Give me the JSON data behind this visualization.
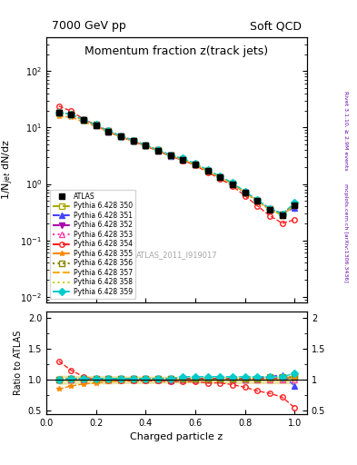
{
  "title_left": "7000 GeV pp",
  "title_right": "Soft QCD",
  "plot_title": "Momentum fraction z(track jets)",
  "ylabel_main": "1/N$_{jet}$ dN/dz",
  "ylabel_ratio": "Ratio to ATLAS",
  "xlabel": "Charged particle z",
  "watermark": "ATLAS_2011_I919017",
  "right_label_top": "Rivet 3.1.10, ≥ 2.9M events",
  "right_label_bottom": "mcplots.cern.ch [arXiv:1306.3436]",
  "ylim_main": [
    0.008,
    400
  ],
  "ylim_ratio": [
    0.45,
    2.1
  ],
  "xlim": [
    0.0,
    1.05
  ],
  "x_data": [
    0.05,
    0.1,
    0.15,
    0.2,
    0.25,
    0.3,
    0.35,
    0.4,
    0.45,
    0.5,
    0.55,
    0.6,
    0.65,
    0.7,
    0.75,
    0.8,
    0.85,
    0.9,
    0.95,
    1.0
  ],
  "atlas_y": [
    18.5,
    17.0,
    13.5,
    11.0,
    8.5,
    7.0,
    5.8,
    4.8,
    3.9,
    3.2,
    2.7,
    2.2,
    1.7,
    1.3,
    1.0,
    0.7,
    0.5,
    0.35,
    0.28,
    0.42
  ],
  "atlas_yerr": [
    0.5,
    0.4,
    0.3,
    0.25,
    0.2,
    0.15,
    0.12,
    0.1,
    0.08,
    0.06,
    0.05,
    0.04,
    0.035,
    0.025,
    0.02,
    0.015,
    0.01,
    0.008,
    0.006,
    0.01
  ],
  "series": [
    {
      "label": "Pythia 6.428 350",
      "color": "#aaaa00",
      "marker": "s",
      "linestyle": "--",
      "fillstyle": "none",
      "scale": [
        1.0,
        1.0,
        1.0,
        1.0,
        1.0,
        1.0,
        1.0,
        1.0,
        1.0,
        1.0,
        1.0,
        1.0,
        1.0,
        1.0,
        1.0,
        1.0,
        1.0,
        1.0,
        1.0,
        1.05
      ]
    },
    {
      "label": "Pythia 6.428 351",
      "color": "#4444ff",
      "marker": "^",
      "linestyle": "--",
      "fillstyle": "full",
      "scale": [
        1.0,
        1.0,
        1.0,
        1.0,
        1.0,
        1.0,
        1.0,
        1.0,
        1.0,
        0.98,
        1.0,
        1.0,
        1.0,
        1.0,
        1.0,
        1.0,
        1.02,
        1.05,
        1.08,
        0.9
      ]
    },
    {
      "label": "Pythia 6.428 352",
      "color": "#aa00aa",
      "marker": "v",
      "linestyle": "--",
      "fillstyle": "full",
      "scale": [
        1.0,
        1.02,
        1.02,
        1.02,
        1.02,
        1.02,
        1.02,
        1.02,
        1.02,
        1.02,
        1.02,
        1.02,
        1.02,
        1.02,
        1.02,
        1.02,
        1.02,
        1.02,
        1.02,
        1.05
      ]
    },
    {
      "label": "Pythia 6.428 353",
      "color": "#ff44aa",
      "marker": "^",
      "linestyle": ":",
      "fillstyle": "none",
      "scale": [
        1.0,
        1.0,
        1.0,
        1.0,
        1.0,
        1.0,
        1.0,
        1.0,
        1.0,
        1.0,
        1.0,
        1.0,
        1.0,
        1.0,
        1.0,
        1.0,
        1.0,
        1.0,
        1.0,
        1.0
      ]
    },
    {
      "label": "Pythia 6.428 354",
      "color": "#ff2222",
      "marker": "o",
      "linestyle": "--",
      "fillstyle": "none",
      "scale": [
        1.3,
        1.15,
        1.05,
        1.0,
        0.98,
        0.98,
        0.98,
        0.98,
        0.98,
        0.97,
        0.97,
        0.97,
        0.95,
        0.95,
        0.92,
        0.88,
        0.82,
        0.78,
        0.72,
        0.55
      ]
    },
    {
      "label": "Pythia 6.428 355",
      "color": "#ff8800",
      "marker": "*",
      "linestyle": "--",
      "fillstyle": "full",
      "scale": [
        0.85,
        0.9,
        0.93,
        0.95,
        0.97,
        0.98,
        1.0,
        1.0,
        1.0,
        1.0,
        1.0,
        1.0,
        1.0,
        1.0,
        1.0,
        1.0,
        1.0,
        1.0,
        1.02,
        1.05
      ]
    },
    {
      "label": "Pythia 6.428 356",
      "color": "#888800",
      "marker": "s",
      "linestyle": ":",
      "fillstyle": "none",
      "scale": [
        1.0,
        1.02,
        1.02,
        1.02,
        1.02,
        1.02,
        1.02,
        1.02,
        1.02,
        1.02,
        1.02,
        1.02,
        1.02,
        1.02,
        1.02,
        1.02,
        1.02,
        1.04,
        1.05,
        1.05
      ]
    },
    {
      "label": "Pythia 6.428 357",
      "color": "#ffaa00",
      "marker": "None",
      "linestyle": "--",
      "fillstyle": "full",
      "scale": [
        1.0,
        1.0,
        1.0,
        1.0,
        1.0,
        1.0,
        1.0,
        1.0,
        1.0,
        1.0,
        1.0,
        1.0,
        1.0,
        1.0,
        1.0,
        1.0,
        1.0,
        1.0,
        1.0,
        1.0
      ]
    },
    {
      "label": "Pythia 6.428 358",
      "color": "#cccc00",
      "marker": "None",
      "linestyle": ":",
      "fillstyle": "full",
      "scale": [
        1.0,
        1.0,
        1.0,
        1.0,
        1.0,
        1.0,
        1.0,
        1.0,
        1.0,
        1.0,
        1.0,
        1.0,
        1.0,
        1.0,
        1.0,
        1.0,
        1.0,
        1.0,
        1.0,
        1.0
      ]
    },
    {
      "label": "Pythia 6.428 359",
      "color": "#00cccc",
      "marker": "D",
      "linestyle": "--",
      "fillstyle": "full",
      "scale": [
        1.0,
        1.02,
        1.02,
        1.02,
        1.02,
        1.02,
        1.02,
        1.02,
        1.02,
        1.02,
        1.05,
        1.05,
        1.05,
        1.05,
        1.05,
        1.05,
        1.05,
        1.05,
        1.05,
        1.1
      ]
    }
  ],
  "band_color": "#cccc44",
  "band_alpha": 0.4
}
